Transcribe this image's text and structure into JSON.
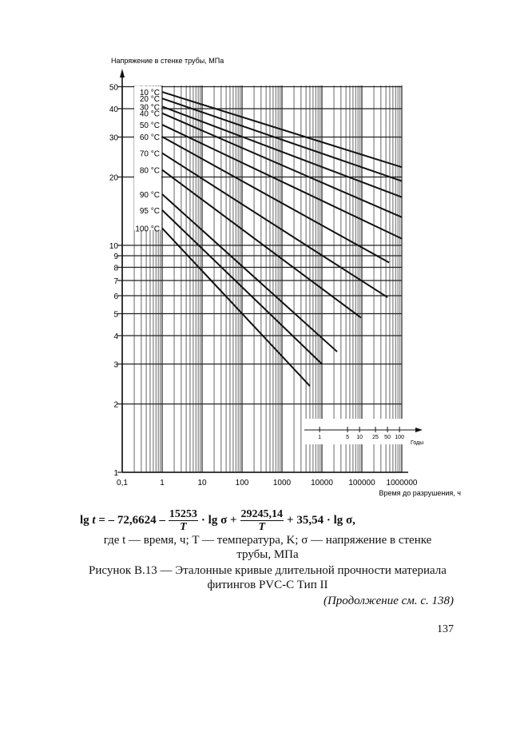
{
  "chart_data": {
    "type": "line",
    "ylabel": "Напряжение в стенке трубы, МПа",
    "xlabel": "Время до разрушения, ч",
    "x_scale": "log",
    "y_scale": "log",
    "xlim": [
      0.1,
      1000000
    ],
    "ylim": [
      1,
      50
    ],
    "grid": true,
    "x_ticks": [
      "0,1",
      "1",
      "10",
      "100",
      "1000",
      "10000",
      "100000",
      "1000000"
    ],
    "x_tick_values": [
      0.1,
      1,
      10,
      100,
      1000,
      10000,
      100000,
      1000000
    ],
    "y_ticks": [
      "1",
      "2",
      "3",
      "4",
      "5",
      "6",
      "7",
      "8",
      "9",
      "10",
      "20",
      "30",
      "40",
      "50"
    ],
    "y_tick_values": [
      1,
      2,
      3,
      4,
      5,
      6,
      7,
      8,
      9,
      10,
      20,
      30,
      40,
      50
    ],
    "secondary_x_axis": {
      "label": "Годы",
      "ticks": [
        "1",
        "5",
        "10",
        "25",
        "50",
        "100"
      ],
      "tick_values_years": [
        1,
        5,
        10,
        25,
        50,
        100
      ]
    },
    "series": [
      {
        "name": "10 °C",
        "x": [
          1,
          1000000
        ],
        "y": [
          47.4,
          22.1
        ]
      },
      {
        "name": "20 °C",
        "x": [
          1,
          1000000
        ],
        "y": [
          44.4,
          19.2
        ]
      },
      {
        "name": "30 °C",
        "x": [
          1,
          1000000
        ],
        "y": [
          40.9,
          16.3
        ]
      },
      {
        "name": "40 °C",
        "x": [
          1,
          1000000
        ],
        "y": [
          38.2,
          13.3
        ]
      },
      {
        "name": "50 °C",
        "x": [
          1,
          1000000
        ],
        "y": [
          34.0,
          10.7
        ]
      },
      {
        "name": "60 °C",
        "x": [
          1,
          480000
        ],
        "y": [
          30.1,
          8.4
        ]
      },
      {
        "name": "70 °C",
        "x": [
          1,
          440000
        ],
        "y": [
          25.5,
          5.9
        ]
      },
      {
        "name": "80 °C",
        "x": [
          1,
          95000
        ],
        "y": [
          21.5,
          4.8
        ]
      },
      {
        "name": "90 °C",
        "x": [
          1,
          24000
        ],
        "y": [
          16.8,
          3.4
        ]
      },
      {
        "name": "95 °C",
        "x": [
          1,
          10000
        ],
        "y": [
          14.3,
          3.0
        ]
      },
      {
        "name": "100 °C",
        "x": [
          1,
          5000
        ],
        "y": [
          11.9,
          2.4
        ]
      }
    ]
  },
  "formula": {
    "lhs": "lg",
    "lhs_var": "t",
    "part1": "= – 72,6624 –",
    "frac1_num": "15253",
    "frac1_den": "T",
    "part2": "· lg σ +",
    "frac2_num": "29245,14",
    "frac2_den": "T",
    "part3": "+ 35,54 · lg σ,"
  },
  "legend_text_line1": "где t — время, ч; T — температура, K; σ — напряжение в стенке",
  "legend_text_line2": "трубы,  МПа",
  "caption_line1": "Рисунок В.13 — Эталонные  кривые  длительной прочности материала",
  "caption_line2": "фитингов PVC-C Тип II",
  "continuation": "(Продолжение см. с. 138)",
  "page_number": "137"
}
